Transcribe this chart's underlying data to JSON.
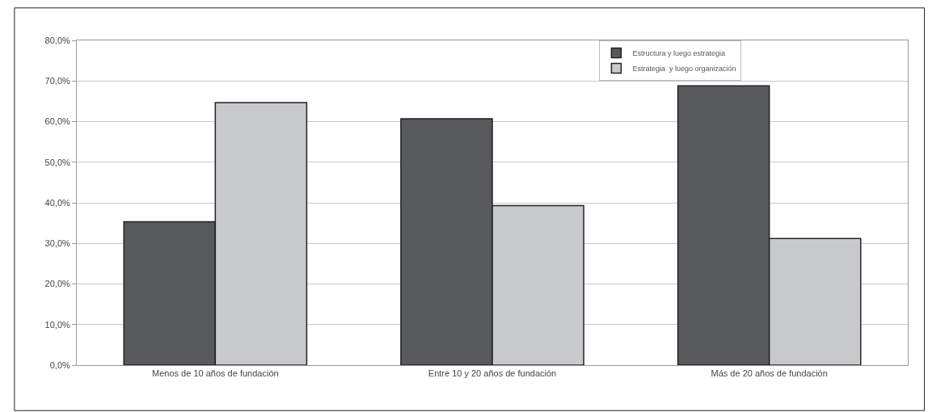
{
  "chart_data": {
    "type": "bar",
    "categories": [
      "Menos de 10 años de fundación",
      "Entre 10 y 20 años de fundación",
      "Más de 20 años de fundación"
    ],
    "series": [
      {
        "name": "Estructura y luego estrategia",
        "color": "#58595b",
        "values": [
          35.3,
          60.7,
          68.8
        ]
      },
      {
        "name": "Estrategia  y luego organización",
        "color": "#c8c9cb",
        "values": [
          64.7,
          39.3,
          31.2
        ]
      }
    ],
    "ylim": [
      0,
      80
    ],
    "yticks": [
      {
        "value": 0,
        "label": "0,0%"
      },
      {
        "value": 10,
        "label": "10,0%"
      },
      {
        "value": 20,
        "label": "20,0%"
      },
      {
        "value": 30,
        "label": "30,0%"
      },
      {
        "value": 40,
        "label": "40,0%"
      },
      {
        "value": 50,
        "label": "50,0%"
      },
      {
        "value": 60,
        "label": "60,0%"
      },
      {
        "value": 70,
        "label": "70,0%"
      },
      {
        "value": 80,
        "label": "80,0%"
      }
    ],
    "grid": "y",
    "legend": "top right"
  }
}
